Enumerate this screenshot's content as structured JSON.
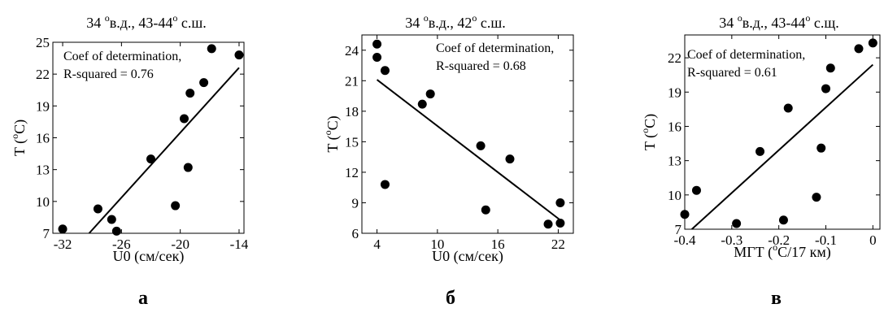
{
  "chart_data": [
    {
      "type": "scatter",
      "title": "34 °в.д., 43-44° с.ш.",
      "title_parts": [
        "34 ",
        "o",
        "в.д., 43-44",
        "o",
        " с.ш."
      ],
      "xlabel": "U0 (см/сек)",
      "ylabel": "T (°C)",
      "ylabel_parts": [
        "T (",
        "o",
        "C)"
      ],
      "annotation": [
        "Coef of determination,",
        "R-squared = 0.76"
      ],
      "panel_letter": "а",
      "xlim": [
        -33,
        -13.5
      ],
      "ylim": [
        7,
        25
      ],
      "xticks": [
        -32,
        -26,
        -20,
        -14
      ],
      "xtick_labels": [
        "-32",
        "-26",
        "-20",
        "-14"
      ],
      "yticks": [
        7,
        10,
        13,
        16,
        19,
        22,
        25
      ],
      "ytick_labels": [
        "7",
        "10",
        "13",
        "16",
        "19",
        "22",
        "25"
      ],
      "points": [
        {
          "x": -32,
          "y": 7.4
        },
        {
          "x": -28.4,
          "y": 9.3
        },
        {
          "x": -27,
          "y": 8.3
        },
        {
          "x": -26.5,
          "y": 7.2
        },
        {
          "x": -23,
          "y": 14
        },
        {
          "x": -20.5,
          "y": 9.6
        },
        {
          "x": -19.6,
          "y": 17.8
        },
        {
          "x": -19.2,
          "y": 13.2
        },
        {
          "x": -19,
          "y": 20.2
        },
        {
          "x": -17.6,
          "y": 21.2
        },
        {
          "x": -16.8,
          "y": 24.4
        },
        {
          "x": -14,
          "y": 23.8
        }
      ],
      "fit_line": [
        {
          "x": -29.3,
          "y": 7
        },
        {
          "x": -14,
          "y": 22.6
        }
      ]
    },
    {
      "type": "scatter",
      "title": "34 °в.д., 42° с.ш.",
      "title_parts": [
        "34 ",
        "o",
        "в.д., 42",
        "o",
        " с.ш."
      ],
      "xlabel": "U0 (см/сек)",
      "ylabel": "T (°C)",
      "ylabel_parts": [
        "T (",
        "o",
        "C)"
      ],
      "annotation": [
        "Coef of determination,",
        "R-squared = 0.68"
      ],
      "panel_letter": "б",
      "xlim": [
        2.5,
        23.5
      ],
      "ylim": [
        6,
        25.5
      ],
      "xticks": [
        4,
        10,
        16,
        22
      ],
      "xtick_labels": [
        "4",
        "10",
        "16",
        "22"
      ],
      "yticks": [
        6,
        9,
        12,
        15,
        18,
        21,
        24
      ],
      "ytick_labels": [
        "6",
        "9",
        "12",
        "15",
        "18",
        "21",
        "24"
      ],
      "points": [
        {
          "x": 4,
          "y": 24.6
        },
        {
          "x": 4,
          "y": 23.3
        },
        {
          "x": 4.8,
          "y": 22
        },
        {
          "x": 4.8,
          "y": 10.8
        },
        {
          "x": 8.5,
          "y": 18.7
        },
        {
          "x": 9.3,
          "y": 19.7
        },
        {
          "x": 14.3,
          "y": 14.6
        },
        {
          "x": 14.8,
          "y": 8.3
        },
        {
          "x": 17.2,
          "y": 13.3
        },
        {
          "x": 21,
          "y": 6.9
        },
        {
          "x": 22.2,
          "y": 9
        },
        {
          "x": 22.2,
          "y": 7
        }
      ],
      "fit_line": [
        {
          "x": 4,
          "y": 21.1
        },
        {
          "x": 22.2,
          "y": 7.3
        }
      ]
    },
    {
      "type": "scatter",
      "title": "34 °в.д., 43-44° с.щ.",
      "title_parts": [
        "34 ",
        "o",
        "в.д., 43-44",
        "o",
        " с.щ."
      ],
      "xlabel": "МГТ (°С/17 км)",
      "xlabel_parts": [
        "МГТ (",
        "o",
        "С/17 км)"
      ],
      "ylabel": "T (°C)",
      "ylabel_parts": [
        "T (",
        "o",
        "C)"
      ],
      "annotation": [
        "Coef of determination,",
        "R-squared = 0.61"
      ],
      "panel_letter": "в",
      "xlim": [
        -0.4,
        0.015
      ],
      "ylim": [
        7,
        24
      ],
      "xticks": [
        -0.4,
        -0.3,
        -0.2,
        -0.1,
        0
      ],
      "xtick_labels": [
        "-0.4",
        "-0.3",
        "-0.2",
        "-0.1",
        "0"
      ],
      "yticks": [
        7,
        10,
        13,
        16,
        19,
        22
      ],
      "ytick_labels": [
        "7",
        "10",
        "13",
        "16",
        "19",
        "22"
      ],
      "points": [
        {
          "x": -0.4,
          "y": 8.3
        },
        {
          "x": -0.375,
          "y": 10.4
        },
        {
          "x": -0.29,
          "y": 7.5
        },
        {
          "x": -0.24,
          "y": 13.8
        },
        {
          "x": -0.19,
          "y": 7.8
        },
        {
          "x": -0.18,
          "y": 17.6
        },
        {
          "x": -0.12,
          "y": 9.8
        },
        {
          "x": -0.11,
          "y": 14.1
        },
        {
          "x": -0.1,
          "y": 19.3
        },
        {
          "x": -0.09,
          "y": 21.1
        },
        {
          "x": -0.03,
          "y": 22.8
        },
        {
          "x": 0,
          "y": 23.3
        }
      ],
      "fit_line": [
        {
          "x": -0.385,
          "y": 7
        },
        {
          "x": 0,
          "y": 21.4
        }
      ]
    }
  ]
}
